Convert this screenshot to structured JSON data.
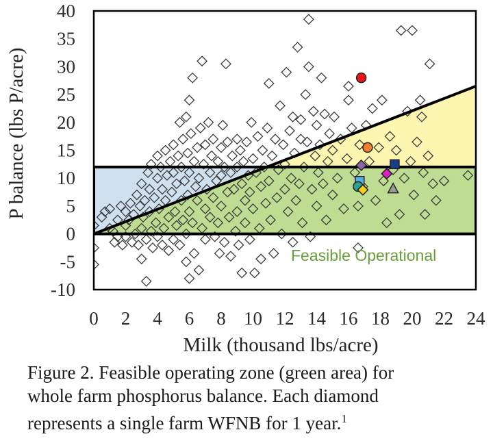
{
  "chart_data": {
    "type": "scatter",
    "title": "",
    "xlabel": "Milk (thousand lbs/acre)",
    "ylabel": "P balance (lbs P/acre)",
    "xlim": [
      0,
      24
    ],
    "ylim": [
      -10,
      40
    ],
    "x_ticks": [
      0,
      2,
      4,
      6,
      8,
      10,
      12,
      14,
      16,
      18,
      20,
      22,
      24
    ],
    "y_ticks": [
      -10,
      -5,
      0,
      5,
      10,
      15,
      20,
      25,
      30,
      35,
      40
    ],
    "grid": false,
    "legend": "none",
    "zones": {
      "rectangle": {
        "x": [
          0,
          24
        ],
        "y": [
          0,
          12
        ]
      },
      "upper_line": {
        "from": [
          0,
          0
        ],
        "to": [
          24,
          26.5
        ]
      },
      "label": "Feasible Operational",
      "colors": {
        "blue": "#cfe0ef",
        "yellow": "#fdf6b0",
        "green": "#bedd92",
        "label": "#6aa03c"
      }
    },
    "series": [
      {
        "marker": "diamond",
        "points": [
          [
            0,
            -5.5
          ],
          [
            0,
            -2.5
          ],
          [
            0,
            1.5
          ],
          [
            0.5,
            3
          ],
          [
            0.7,
            4
          ],
          [
            1,
            1
          ],
          [
            1,
            4.5
          ],
          [
            1.2,
            0.5
          ],
          [
            1.3,
            -1.5
          ],
          [
            1.5,
            2.5
          ],
          [
            1.5,
            -0.5
          ],
          [
            1.7,
            5
          ],
          [
            1.8,
            -2
          ],
          [
            2,
            1.5
          ],
          [
            2,
            4
          ],
          [
            2,
            -0.5
          ],
          [
            2.2,
            2.5
          ],
          [
            2.3,
            5.5
          ],
          [
            2.4,
            -1.5
          ],
          [
            2.5,
            3.5
          ],
          [
            2.6,
            0
          ],
          [
            2.7,
            7
          ],
          [
            2.8,
            -2
          ],
          [
            2.9,
            5
          ],
          [
            3,
            -4.5
          ],
          [
            3,
            1
          ],
          [
            3,
            9
          ],
          [
            3.1,
            3
          ],
          [
            3.2,
            6
          ],
          [
            3.3,
            -8.5
          ],
          [
            3.3,
            -1
          ],
          [
            3.4,
            11
          ],
          [
            3.5,
            4
          ],
          [
            3.5,
            8
          ],
          [
            3.6,
            0.5
          ],
          [
            3.6,
            12.5
          ],
          [
            3.7,
            -2.5
          ],
          [
            3.8,
            6.5
          ],
          [
            3.9,
            2
          ],
          [
            4,
            10
          ],
          [
            4,
            -0.5
          ],
          [
            4,
            14
          ],
          [
            4.1,
            4.5
          ],
          [
            4.2,
            12
          ],
          [
            4.3,
            8
          ],
          [
            4.3,
            -2
          ],
          [
            4.4,
            1
          ],
          [
            4.5,
            15
          ],
          [
            4.5,
            6
          ],
          [
            4.6,
            10.5
          ],
          [
            4.7,
            -3
          ],
          [
            4.7,
            3
          ],
          [
            4.8,
            13
          ],
          [
            4.9,
            7.5
          ],
          [
            5,
            -1
          ],
          [
            5,
            11
          ],
          [
            5,
            16
          ],
          [
            5.1,
            4
          ],
          [
            5.2,
            9
          ],
          [
            5.2,
            1.5
          ],
          [
            5.3,
            14
          ],
          [
            5.4,
            20
          ],
          [
            5.4,
            -2
          ],
          [
            5.5,
            6
          ],
          [
            5.5,
            12
          ],
          [
            5.6,
            17
          ],
          [
            5.6,
            2.5
          ],
          [
            5.7,
            9.5
          ],
          [
            5.8,
            -5
          ],
          [
            5.8,
            21
          ],
          [
            5.8,
            0
          ],
          [
            5.9,
            14.5
          ],
          [
            5.9,
            7
          ],
          [
            6,
            24
          ],
          [
            6,
            11
          ],
          [
            6,
            -8
          ],
          [
            6,
            4
          ],
          [
            6.1,
            18
          ],
          [
            6.2,
            2
          ],
          [
            6.2,
            28
          ],
          [
            6.3,
            13
          ],
          [
            6.3,
            -3.5
          ],
          [
            6.4,
            8.5
          ],
          [
            6.5,
            15.5
          ],
          [
            6.5,
            6
          ],
          [
            6.6,
            10
          ],
          [
            6.6,
            -6.5
          ],
          [
            6.7,
            19
          ],
          [
            6.8,
            31
          ],
          [
            6.8,
            1
          ],
          [
            6.9,
            12.5
          ],
          [
            7,
            16
          ],
          [
            7,
            4.5
          ],
          [
            7,
            -1
          ],
          [
            7.1,
            8
          ],
          [
            7.2,
            20
          ],
          [
            7.3,
            11
          ],
          [
            7.3,
            3
          ],
          [
            7.4,
            14
          ],
          [
            7.5,
            17
          ],
          [
            7.5,
            6.5
          ],
          [
            7.6,
            -0.5
          ],
          [
            7.7,
            9.5
          ],
          [
            7.8,
            13
          ],
          [
            7.8,
            2
          ],
          [
            7.9,
            -3.5
          ],
          [
            8,
            15.5
          ],
          [
            8,
            10.5
          ],
          [
            8,
            5
          ],
          [
            8.1,
            19.5
          ],
          [
            8.2,
            12
          ],
          [
            8.2,
            -1.5
          ],
          [
            8.3,
            30.5
          ],
          [
            8.4,
            7.5
          ],
          [
            8.4,
            16.5
          ],
          [
            8.5,
            3
          ],
          [
            8.6,
            11
          ],
          [
            8.6,
            -4
          ],
          [
            8.7,
            14
          ],
          [
            8.8,
            8
          ],
          [
            8.9,
            0.5
          ],
          [
            9,
            17
          ],
          [
            9,
            12
          ],
          [
            9,
            4
          ],
          [
            9.1,
            -2
          ],
          [
            9.2,
            15
          ],
          [
            9.3,
            9
          ],
          [
            9.3,
            -7
          ],
          [
            9.4,
            13
          ],
          [
            9.5,
            6
          ],
          [
            9.5,
            2
          ],
          [
            9.6,
            16.5
          ],
          [
            9.7,
            10.5
          ],
          [
            9.8,
            7.5
          ],
          [
            9.8,
            -1
          ],
          [
            9.9,
            20
          ],
          [
            10,
            13.5
          ],
          [
            10,
            4.5
          ],
          [
            10.1,
            -7
          ],
          [
            10.2,
            11
          ],
          [
            10.3,
            17.5
          ],
          [
            10.4,
            1
          ],
          [
            10.5,
            8.5
          ],
          [
            10.5,
            -4.5
          ],
          [
            10.6,
            15
          ],
          [
            10.7,
            12
          ],
          [
            10.8,
            5.5
          ],
          [
            10.9,
            19
          ],
          [
            11,
            27
          ],
          [
            11,
            9.5
          ],
          [
            11.1,
            2.5
          ],
          [
            11.2,
            14
          ],
          [
            11.3,
            -3.5
          ],
          [
            11.4,
            17
          ],
          [
            11.5,
            6.5
          ],
          [
            11.6,
            11.5
          ],
          [
            11.7,
            23
          ],
          [
            11.8,
            0
          ],
          [
            11.9,
            16
          ],
          [
            12,
            8
          ],
          [
            12,
            12.5
          ],
          [
            12.1,
            29
          ],
          [
            12.2,
            4
          ],
          [
            12.3,
            18.5
          ],
          [
            12.4,
            10
          ],
          [
            12.5,
            -1.5
          ],
          [
            12.5,
            21
          ],
          [
            12.6,
            14.5
          ],
          [
            12.7,
            6
          ],
          [
            12.8,
            33.5
          ],
          [
            12.9,
            9
          ],
          [
            13,
            17
          ],
          [
            13,
            20.5
          ],
          [
            13.1,
            2
          ],
          [
            13.2,
            12
          ],
          [
            13.3,
            25
          ],
          [
            13.4,
            16.5
          ],
          [
            13.5,
            38.5
          ],
          [
            13.5,
            30
          ],
          [
            13.6,
            -0.5
          ],
          [
            13.7,
            8
          ],
          [
            13.8,
            22
          ],
          [
            13.9,
            14
          ],
          [
            14,
            19.5
          ],
          [
            14,
            5
          ],
          [
            14.1,
            11
          ],
          [
            14.2,
            16
          ],
          [
            14.3,
            28
          ],
          [
            14.4,
            9
          ],
          [
            14.5,
            21.5
          ],
          [
            14.6,
            2.5
          ],
          [
            14.7,
            13
          ],
          [
            14.8,
            18
          ],
          [
            15,
            7
          ],
          [
            15,
            15
          ],
          [
            15.1,
            21
          ],
          [
            15.3,
            10
          ],
          [
            15.5,
            17
          ],
          [
            15.7,
            4.5
          ],
          [
            15.9,
            13.5
          ],
          [
            16,
            26.5
          ],
          [
            16,
            24
          ],
          [
            16.2,
            19
          ],
          [
            16.4,
            11
          ],
          [
            16.6,
            5
          ],
          [
            16.6,
            -2.5
          ],
          [
            16.7,
            16
          ],
          [
            16.9,
            8.5
          ],
          [
            17.1,
            19.5
          ],
          [
            17.3,
            13
          ],
          [
            17.5,
            22.5
          ],
          [
            17.7,
            6
          ],
          [
            17.9,
            15.5
          ],
          [
            18.1,
            24
          ],
          [
            18.2,
            9.5
          ],
          [
            18.4,
            2
          ],
          [
            18.6,
            17.5
          ],
          [
            18.8,
            11.5
          ],
          [
            19,
            15
          ],
          [
            19.2,
            3.5
          ],
          [
            19.3,
            36.5
          ],
          [
            19.5,
            10
          ],
          [
            19.7,
            22
          ],
          [
            19.9,
            13
          ],
          [
            20,
            36.5
          ],
          [
            20.1,
            7
          ],
          [
            20.3,
            16.5
          ],
          [
            20.5,
            24
          ],
          [
            20.6,
            21
          ],
          [
            20.7,
            11
          ],
          [
            20.8,
            3.5
          ],
          [
            21,
            14
          ],
          [
            21.1,
            30.5
          ],
          [
            21.3,
            9
          ],
          [
            21.5,
            6
          ],
          [
            22,
            9.5
          ],
          [
            23.5,
            10.5
          ]
        ]
      },
      {
        "marker": "highlighted farms",
        "points": [
          {
            "x": 16.8,
            "y": 28,
            "shape": "circle",
            "color": "#e8151b"
          },
          {
            "x": 17.2,
            "y": 15.5,
            "shape": "circle",
            "color": "#f4802e"
          },
          {
            "x": 18.9,
            "y": 12.5,
            "shape": "square",
            "color": "#173e8a"
          },
          {
            "x": 16.8,
            "y": 12.3,
            "shape": "diamond",
            "color": "#8e63a8"
          },
          {
            "x": 18.4,
            "y": 10.8,
            "shape": "diamond",
            "color": "#e21fc7"
          },
          {
            "x": 16.7,
            "y": 9.5,
            "shape": "square",
            "color": "#5aaee2"
          },
          {
            "x": 16.6,
            "y": 8.5,
            "shape": "circle",
            "color": "#2aa394"
          },
          {
            "x": 16.9,
            "y": 7.9,
            "shape": "diamond",
            "color": "#f7d21b"
          },
          {
            "x": 18.8,
            "y": 8.1,
            "shape": "triangle",
            "color": "#9a9a9a"
          }
        ]
      }
    ]
  },
  "caption": {
    "line1": "Figure 2. Feasible operating zone (green area) for",
    "line2": "whole farm phosphorus balance. Each diamond",
    "line3": "represents a single farm WFNB for 1 year.",
    "footnote": "1"
  }
}
